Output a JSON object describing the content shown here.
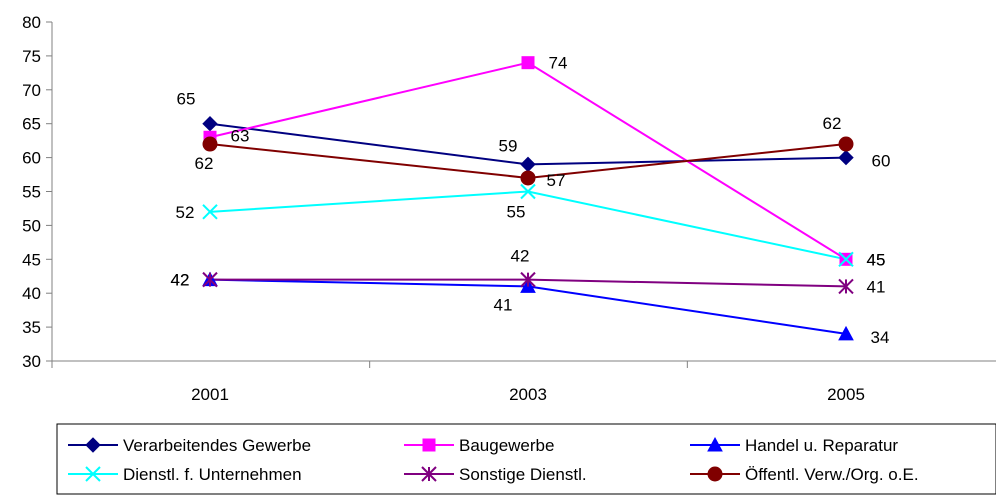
{
  "chart_data": {
    "type": "line",
    "title": "",
    "xlabel": "",
    "ylabel": "",
    "categories": [
      "2001",
      "2003",
      "2005"
    ],
    "ylim": [
      30,
      80
    ],
    "yticks": [
      30,
      35,
      40,
      45,
      50,
      55,
      60,
      65,
      70,
      75,
      80
    ],
    "grid": false,
    "legend_position": "bottom",
    "series": [
      {
        "name": "Verarbeitendes Gewerbe",
        "values": [
          65,
          59,
          60
        ],
        "color": "#000080",
        "marker": "diamond"
      },
      {
        "name": "Baugewerbe",
        "values": [
          63,
          74,
          45
        ],
        "color": "#ff00ff",
        "marker": "square"
      },
      {
        "name": "Handel u. Reparatur",
        "values": [
          42,
          41,
          34
        ],
        "color": "#0000ff",
        "marker": "triangle"
      },
      {
        "name": "Dienstl. f. Unternehmen",
        "values": [
          52,
          55,
          45
        ],
        "color": "#00ffff",
        "marker": "x"
      },
      {
        "name": "Sonstige Dienstl.",
        "values": [
          42,
          42,
          41
        ],
        "color": "#800080",
        "marker": "asterisk"
      },
      {
        "name": "Öffentl. Verw./Org. o.E.",
        "values": [
          62,
          57,
          62
        ],
        "color": "#800000",
        "marker": "circle"
      }
    ]
  }
}
